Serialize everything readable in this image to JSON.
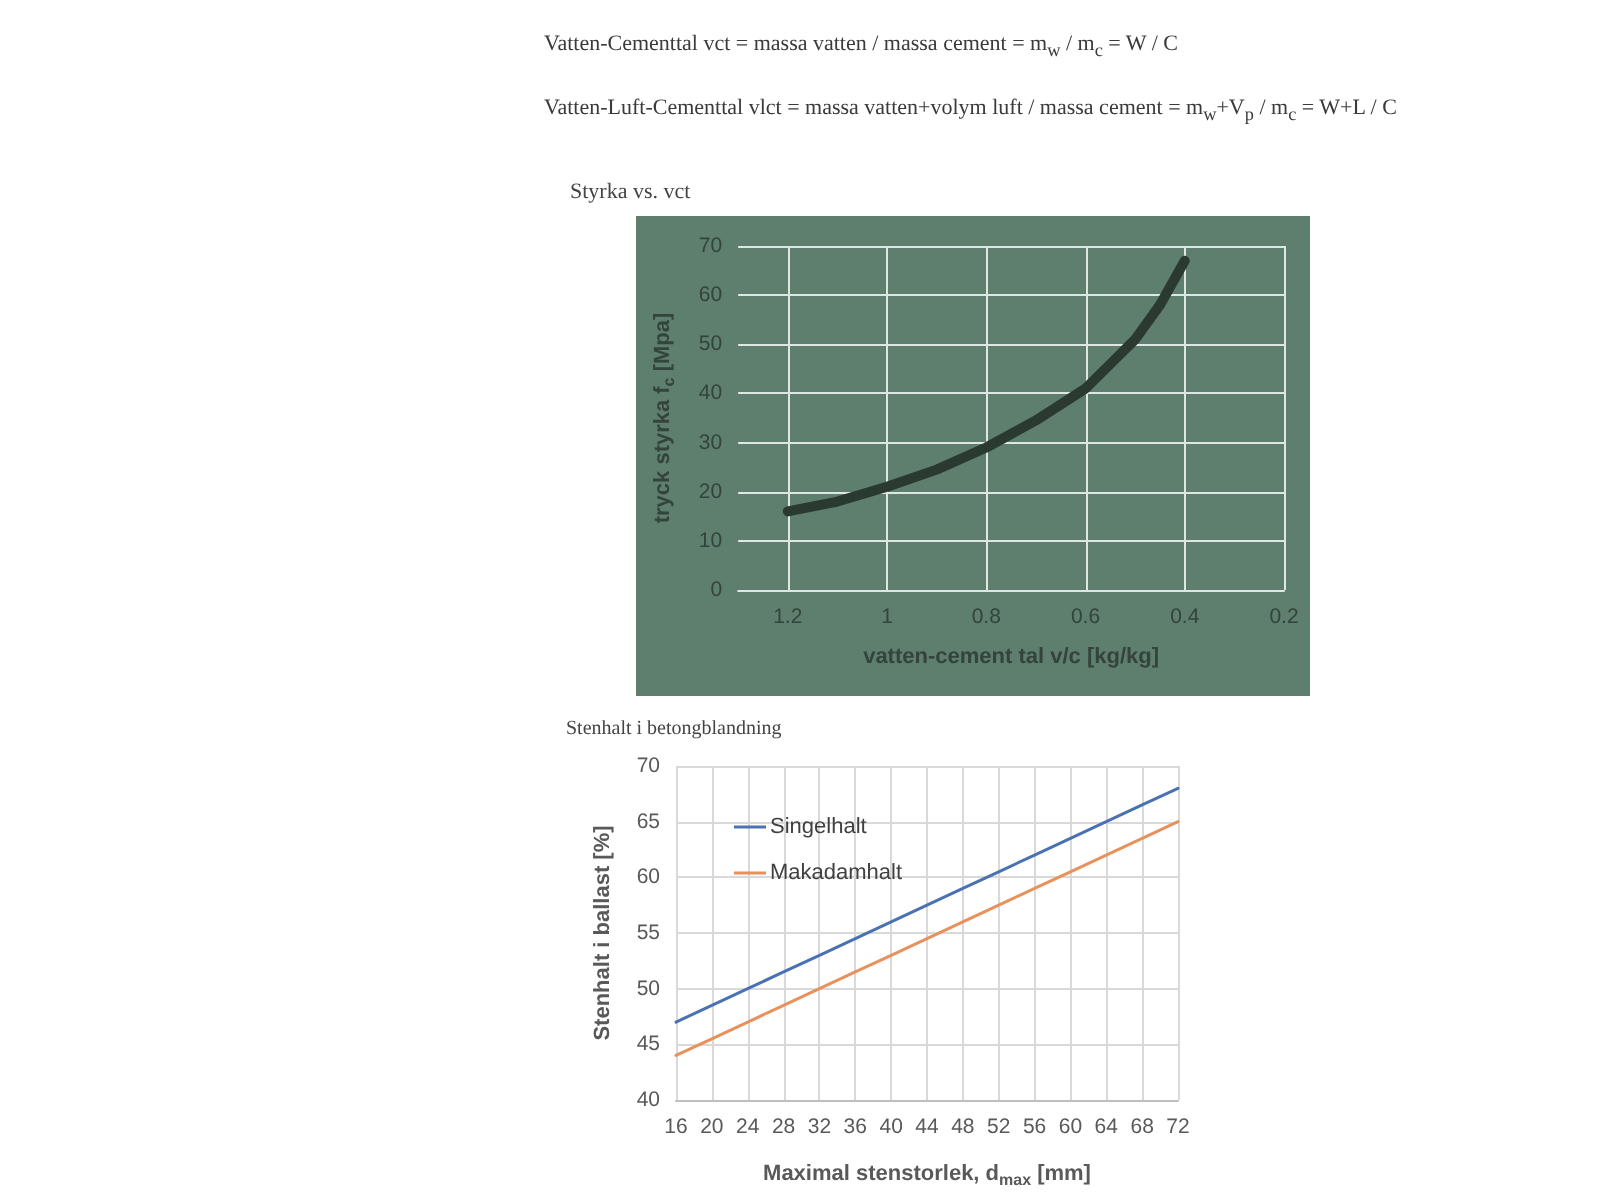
{
  "chart_data": [
    {
      "type": "line",
      "title": "Styrka vs. vct",
      "xlabel": "vatten-cement tal v/c [kg/kg]",
      "ylabel": "tryck styrka f$_{c}$ [Mpa]",
      "annotations": [
        "Vatten-Cementtal vct = massa vatten / massa cement = m$_{w}$ / m$_{c}$ = W / C",
        "Vatten-Luft-Cementtal vlct = massa vatten+volym luft / massa cement = m$_{w}$+V$_{p}$ / m$_{c}$ = W+L / C"
      ],
      "x": [
        1.2,
        1.1,
        1.0,
        0.9,
        0.8,
        0.7,
        0.6,
        0.55,
        0.5,
        0.45,
        0.4
      ],
      "series": [
        {
          "color": "#2b3a30",
          "values": [
            16,
            18,
            21,
            24.5,
            29,
            34.5,
            41,
            46,
            51,
            58,
            67
          ]
        }
      ],
      "xlim": [
        1.3,
        0.2
      ],
      "xticks": [
        1.2,
        1,
        0.8,
        0.6,
        0.4,
        0.2
      ],
      "ylim": [
        0,
        70
      ],
      "yticks": [
        0,
        10,
        20,
        30,
        40,
        50,
        60,
        70
      ],
      "grid": true,
      "marker": "none"
    },
    {
      "type": "line",
      "title": "Stenhalt i betongblandning",
      "xlabel": "Maximal stenstorlek, d$_{max}$ [mm]",
      "ylabel": "Stenhalt i ballast [%]",
      "x": [
        16,
        20,
        24,
        28,
        32,
        36,
        40,
        44,
        48,
        52,
        56,
        60,
        64,
        68,
        72
      ],
      "series": [
        {
          "name": "Singelhalt",
          "color": "#4a72b2",
          "values": [
            47,
            48.5,
            50,
            51.5,
            53,
            54.5,
            56,
            57.5,
            59,
            60.5,
            62,
            63.5,
            65,
            66.5,
            68
          ]
        },
        {
          "name": "Makadamhalt",
          "color": "#e8915c",
          "values": [
            44,
            45.5,
            47,
            48.5,
            50,
            51.5,
            53,
            54.5,
            56,
            57.5,
            59,
            60.5,
            62,
            63.5,
            65
          ]
        }
      ],
      "xlim": [
        16,
        72
      ],
      "xticks": [
        16,
        20,
        24,
        28,
        32,
        36,
        40,
        44,
        48,
        52,
        56,
        60,
        64,
        68,
        72
      ],
      "ylim": [
        40,
        70
      ],
      "yticks": [
        40,
        45,
        50,
        55,
        60,
        65,
        70
      ],
      "grid": true,
      "legend": "top left",
      "marker": "none"
    }
  ]
}
